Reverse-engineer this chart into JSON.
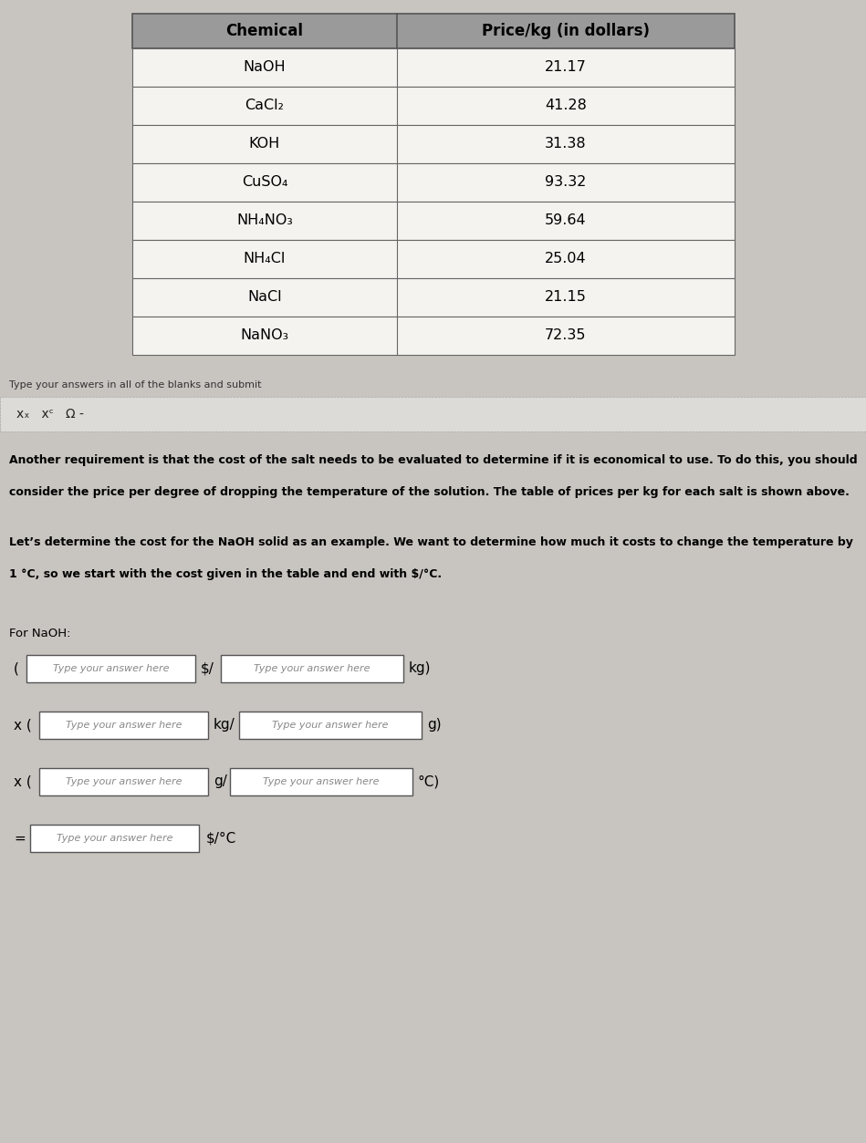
{
  "bg_color": "#c8c4c0",
  "lower_bg": "#d4d0cc",
  "table_header": [
    "Chemical",
    "Price/kg (in dollars)"
  ],
  "table_rows": [
    [
      "NaOH",
      "21.17"
    ],
    [
      "CaCl₂",
      "41.28"
    ],
    [
      "KOH",
      "31.38"
    ],
    [
      "CuSO₄",
      "93.32"
    ],
    [
      "NH₄NO₃",
      "59.64"
    ],
    [
      "NH₄Cl",
      "25.04"
    ],
    [
      "NaCl",
      "21.15"
    ],
    [
      "NaNO₃",
      "72.35"
    ]
  ],
  "header_bg": "#9a9a9a",
  "row_bg": "#f5f3f0",
  "submit_text": "Type your answers in all of the blanks and submit",
  "toolbar_text": "xₓ   xᶜ   Ω -",
  "para1_line1": "Another requirement is that the cost of the salt needs to be evaluated to determine if it is economical to use. To do this, you should",
  "para1_line2": "consider the price per degree of dropping the temperature of the solution. The table of prices per kg for each salt is shown above.",
  "para2_line1": "Let’s determine the cost for the NaOH solid as an example. We want to determine how much it costs to change the temperature by",
  "para2_line2": "1 °C, so we start with the cost given in the table and end with $/°C.",
  "for_naoh": "For NaOH:",
  "row1_pre": "(",
  "row1_mid": "$/",
  "row1_post": "kg)",
  "row2_pre": "x (",
  "row2_mid": "kg/",
  "row2_post": "g)",
  "row3_pre": "x (",
  "row3_mid": "g/",
  "row3_post": "°C)",
  "row4_pre": "=",
  "row4_post": "$/°C",
  "placeholder": "Type your answer here"
}
